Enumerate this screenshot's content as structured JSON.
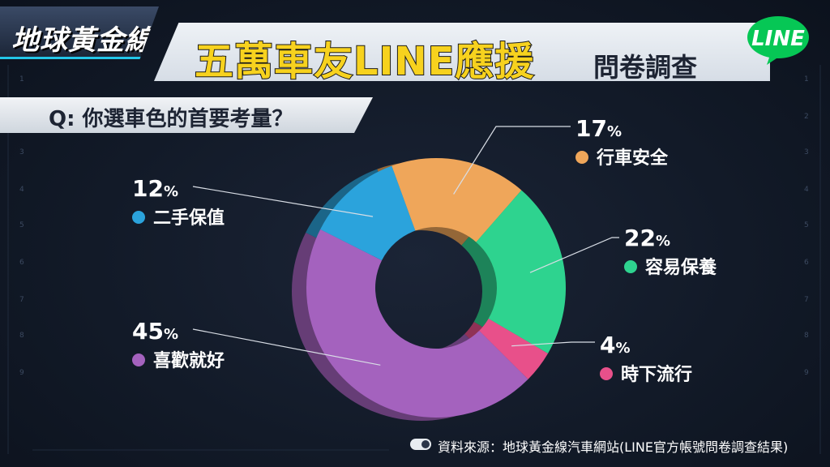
{
  "header": {
    "logo": "地球黃金線",
    "title_main": "五萬車友LINE應援",
    "title_sub": "問卷調查",
    "line_badge": "LINE"
  },
  "question": "Q: 你選車色的首要考量？",
  "source": "資料來源：地球黃金線汽車網站(LINE官方帳號問卷調查結果)",
  "colors": {
    "accent": "#23c6e8",
    "title_yellow": "#f7d21e",
    "line_green": "#06c755"
  },
  "chart_data": {
    "type": "pie",
    "style": "donut",
    "unit": "%",
    "slices": [
      {
        "label": "行車安全",
        "value": 17,
        "color": "#efa65a"
      },
      {
        "label": "容易保養",
        "value": 22,
        "color": "#2ed38f"
      },
      {
        "label": "時下流行",
        "value": 4,
        "color": "#e8508a"
      },
      {
        "label": "喜歡就好",
        "value": 45,
        "color": "#a462be"
      },
      {
        "label": "二手保值",
        "value": 12,
        "color": "#2ba3dc"
      }
    ]
  }
}
